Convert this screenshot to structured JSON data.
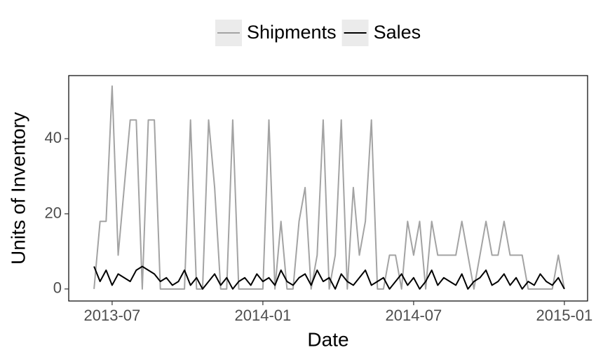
{
  "chart_data": {
    "type": "line",
    "xlabel": "Date",
    "ylabel": "Units of Inventory",
    "x": [
      2013.44,
      2013.46,
      2013.48,
      2013.5,
      2013.52,
      2013.54,
      2013.56,
      2013.58,
      2013.6,
      2013.62,
      2013.64,
      2013.66,
      2013.68,
      2013.7,
      2013.72,
      2013.74,
      2013.76,
      2013.78,
      2013.8,
      2013.82,
      2013.84,
      2013.86,
      2013.88,
      2013.9,
      2013.92,
      2013.94,
      2013.96,
      2013.98,
      2014,
      2014.02,
      2014.04,
      2014.06,
      2014.08,
      2014.1,
      2014.12,
      2014.14,
      2014.16,
      2014.18,
      2014.2,
      2014.22,
      2014.24,
      2014.26,
      2014.28,
      2014.3,
      2014.32,
      2014.34,
      2014.36,
      2014.38,
      2014.4,
      2014.42,
      2014.44,
      2014.46,
      2014.48,
      2014.5,
      2014.52,
      2014.54,
      2014.56,
      2014.58,
      2014.6,
      2014.62,
      2014.64,
      2014.66,
      2014.68,
      2014.7,
      2014.72,
      2014.74,
      2014.76,
      2014.78,
      2014.8,
      2014.82,
      2014.84,
      2014.86,
      2014.88,
      2014.9,
      2014.92,
      2014.94,
      2014.96,
      2014.98,
      2015
    ],
    "series": [
      {
        "name": "Shipments",
        "color": "#a3a3a3",
        "values": [
          0,
          18,
          18,
          54,
          9,
          27,
          45,
          45,
          0,
          45,
          45,
          0,
          0,
          0,
          0,
          0,
          45,
          0,
          0,
          45,
          27,
          0,
          0,
          45,
          0,
          0,
          0,
          0,
          0,
          45,
          0,
          18,
          0,
          0,
          18,
          27,
          0,
          9,
          45,
          0,
          9,
          45,
          0,
          27,
          9,
          18,
          45,
          0,
          0,
          9,
          9,
          0,
          18,
          9,
          18,
          0,
          18,
          9,
          9,
          9,
          9,
          18,
          9,
          0,
          9,
          18,
          9,
          9,
          18,
          9,
          9,
          9,
          0,
          0,
          0,
          0,
          0,
          9,
          0
        ]
      },
      {
        "name": "Sales",
        "color": "#000000",
        "values": [
          6,
          2,
          5,
          1,
          4,
          3,
          2,
          5,
          6,
          5,
          4,
          2,
          3,
          1,
          2,
          5,
          1,
          3,
          0,
          2,
          4,
          1,
          3,
          0,
          2,
          3,
          1,
          4,
          2,
          3,
          1,
          5,
          2,
          1,
          3,
          4,
          1,
          5,
          2,
          3,
          0,
          4,
          2,
          1,
          3,
          5,
          1,
          2,
          3,
          0,
          2,
          4,
          1,
          3,
          0,
          2,
          5,
          1,
          3,
          2,
          1,
          4,
          0,
          2,
          3,
          5,
          1,
          2,
          4,
          1,
          3,
          0,
          2,
          1,
          4,
          2,
          1,
          3,
          0
        ]
      }
    ],
    "xlim": [
      2013.356,
      2015.077
    ],
    "xticks": [
      {
        "value": 2013.5,
        "label": "2013-07"
      },
      {
        "value": 2014,
        "label": "2014-01"
      },
      {
        "value": 2014.5,
        "label": "2014-07"
      },
      {
        "value": 2015,
        "label": "2015-01"
      }
    ],
    "ylim": [
      -3.2,
      56.8
    ],
    "yticks": [
      0,
      20,
      40
    ],
    "grid": false,
    "legend": "top"
  }
}
